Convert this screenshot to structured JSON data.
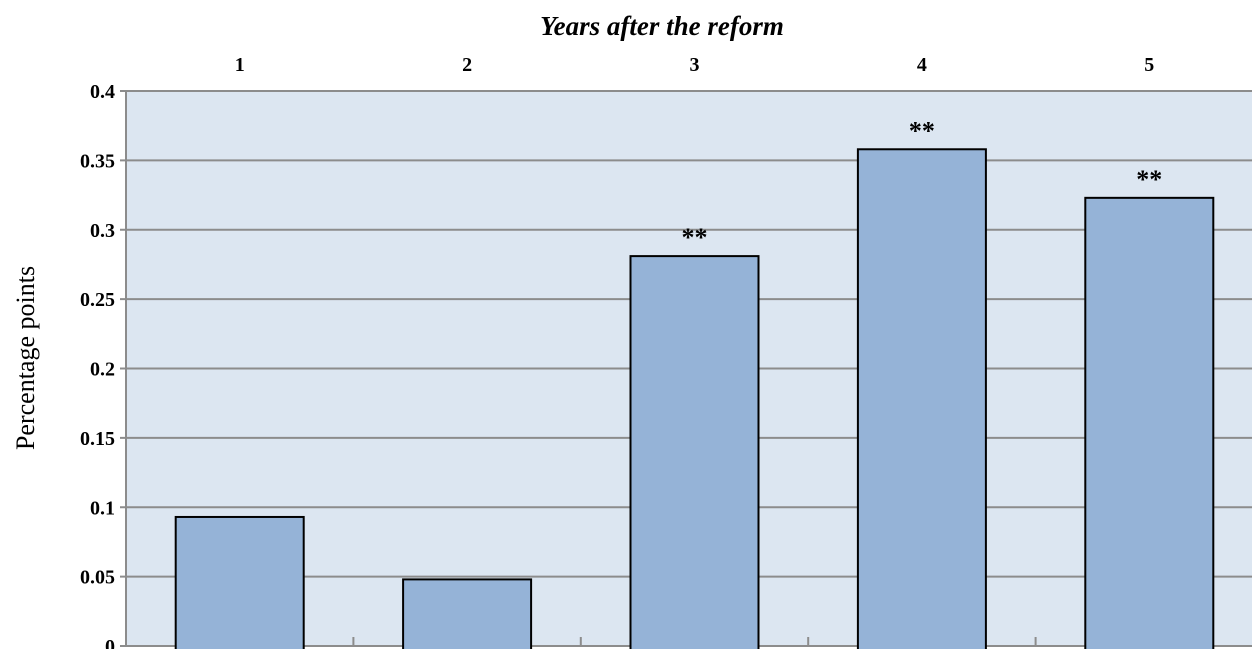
{
  "chart_data": {
    "type": "bar",
    "title": "",
    "xlabel": "Years after the reform",
    "ylabel": "Percentage points",
    "categories": [
      "1",
      "2",
      "3",
      "4",
      "5"
    ],
    "values": [
      0.093,
      0.048,
      0.281,
      0.358,
      0.323
    ],
    "annotations": [
      "",
      "",
      "**",
      "**",
      "**"
    ],
    "y_ticks": [
      "0",
      "0.05",
      "0.1",
      "0.15",
      "0.2",
      "0.25",
      "0.3",
      "0.35",
      "0.4"
    ],
    "ylim": [
      0,
      0.4
    ],
    "x_axis_position": "top",
    "grid": true,
    "legend": "none",
    "colors": {
      "plot_background": "#dce6f1",
      "bar_fill": "#95b3d7",
      "bar_stroke": "#000000",
      "gridline": "#8c8c8c"
    }
  }
}
